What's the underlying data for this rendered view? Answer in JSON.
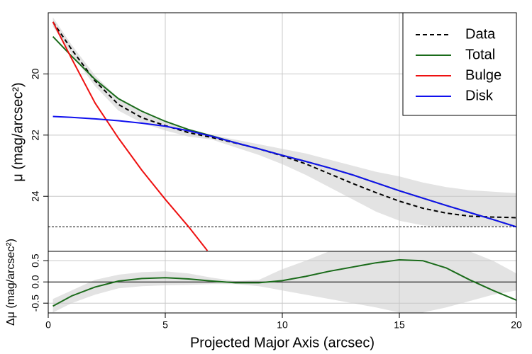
{
  "chart_data": [
    {
      "type": "line",
      "ylabel": "μ (mag/arcsec²)",
      "x": [
        0.2,
        1,
        2,
        3,
        4,
        5,
        6,
        7,
        8,
        9,
        10,
        11,
        12,
        13,
        14,
        15,
        16,
        17,
        18,
        19,
        20
      ],
      "xlim": [
        0,
        20
      ],
      "xticks": [
        0,
        5,
        10,
        15,
        20
      ],
      "show_xtick_labels": false,
      "ylim": [
        25.8,
        18.0
      ],
      "yticks": [
        20,
        22,
        24
      ],
      "grid": true,
      "legend": "top-right",
      "hlines": [
        25
      ],
      "band": {
        "color": "#e3e3e3",
        "lower": [
          18.15,
          19.05,
          20.05,
          20.8,
          21.25,
          21.55,
          21.82,
          22.0,
          22.15,
          22.3,
          22.45,
          22.6,
          22.8,
          23.0,
          23.2,
          23.35,
          23.55,
          23.7,
          23.8,
          23.85,
          23.9
        ],
        "upper": [
          18.45,
          19.35,
          20.4,
          21.2,
          21.6,
          21.85,
          22.05,
          22.15,
          22.4,
          22.65,
          22.95,
          23.3,
          23.7,
          24.1,
          24.5,
          24.8,
          24.95,
          25.0,
          25.0,
          24.98,
          24.97
        ]
      },
      "series": [
        {
          "name": "Data",
          "color": "#000000",
          "dash": true,
          "values": [
            18.3,
            19.2,
            20.23,
            21.0,
            21.43,
            21.69,
            21.92,
            22.08,
            22.26,
            22.45,
            22.68,
            22.94,
            23.26,
            23.58,
            23.88,
            24.16,
            24.39,
            24.55,
            24.65,
            24.68,
            24.7
          ]
        },
        {
          "name": "Total",
          "color": "#1a6b1a",
          "dash": false,
          "values": [
            18.78,
            19.42,
            20.18,
            20.81,
            21.22,
            21.55,
            21.82,
            22.03,
            22.25,
            22.45,
            22.66,
            22.86,
            23.07,
            23.3,
            23.56,
            23.82,
            24.06,
            24.3,
            24.53,
            24.76,
            25.0
          ]
        },
        {
          "name": "Bulge",
          "color": "#ee1111",
          "dash": false,
          "x": [
            0.2,
            1,
            2,
            3,
            4,
            5,
            6,
            6.8
          ],
          "values": [
            18.3,
            19.5,
            20.95,
            22.1,
            23.15,
            24.1,
            25.0,
            25.78
          ]
        },
        {
          "name": "Disk",
          "color": "#1010ee",
          "dash": false,
          "values": [
            21.39,
            21.42,
            21.47,
            21.53,
            21.61,
            21.71,
            21.86,
            22.04,
            22.25,
            22.45,
            22.66,
            22.86,
            23.07,
            23.3,
            23.56,
            23.82,
            24.06,
            24.3,
            24.53,
            24.76,
            25.0
          ]
        }
      ]
    },
    {
      "type": "line",
      "ylabel": "Δμ (mag/arcsec²)",
      "xlabel": "Projected Major Axis (arcsec)",
      "x": [
        0.2,
        1,
        2,
        3,
        4,
        5,
        6,
        7,
        8,
        9,
        10,
        11,
        12,
        13,
        14,
        15,
        16,
        17,
        18,
        19,
        20
      ],
      "xlim": [
        0,
        20
      ],
      "xticks": [
        0,
        5,
        10,
        15,
        20
      ],
      "show_xtick_labels": true,
      "ylim": [
        -0.73,
        0.72
      ],
      "yticks": [
        0.5,
        {
          "value": 0,
          "label": "0.0"
        },
        -0.5
      ],
      "grid": true,
      "hlines": [
        0
      ],
      "band": {
        "color": "#e3e3e3",
        "lower": [
          -0.72,
          -0.5,
          -0.3,
          -0.15,
          -0.1,
          -0.08,
          -0.07,
          -0.05,
          -0.05,
          -0.1,
          -0.2,
          -0.3,
          -0.4,
          -0.5,
          -0.6,
          -0.72,
          -0.72,
          -0.6,
          -0.45,
          -0.3,
          -0.2
        ],
        "upper": [
          -0.4,
          -0.2,
          0.05,
          0.17,
          0.23,
          0.25,
          0.2,
          0.1,
          0.02,
          0.05,
          0.3,
          0.5,
          0.72,
          0.72,
          0.72,
          0.72,
          0.72,
          0.72,
          0.72,
          0.5,
          0.2
        ]
      },
      "series": [
        {
          "color": "#1a6b1a",
          "dash": false,
          "values": [
            -0.57,
            -0.33,
            -0.12,
            0.02,
            0.08,
            0.1,
            0.07,
            0.02,
            -0.02,
            -0.02,
            0.03,
            0.13,
            0.25,
            0.35,
            0.45,
            0.52,
            0.5,
            0.33,
            0.05,
            -0.2,
            -0.43
          ]
        }
      ]
    }
  ]
}
